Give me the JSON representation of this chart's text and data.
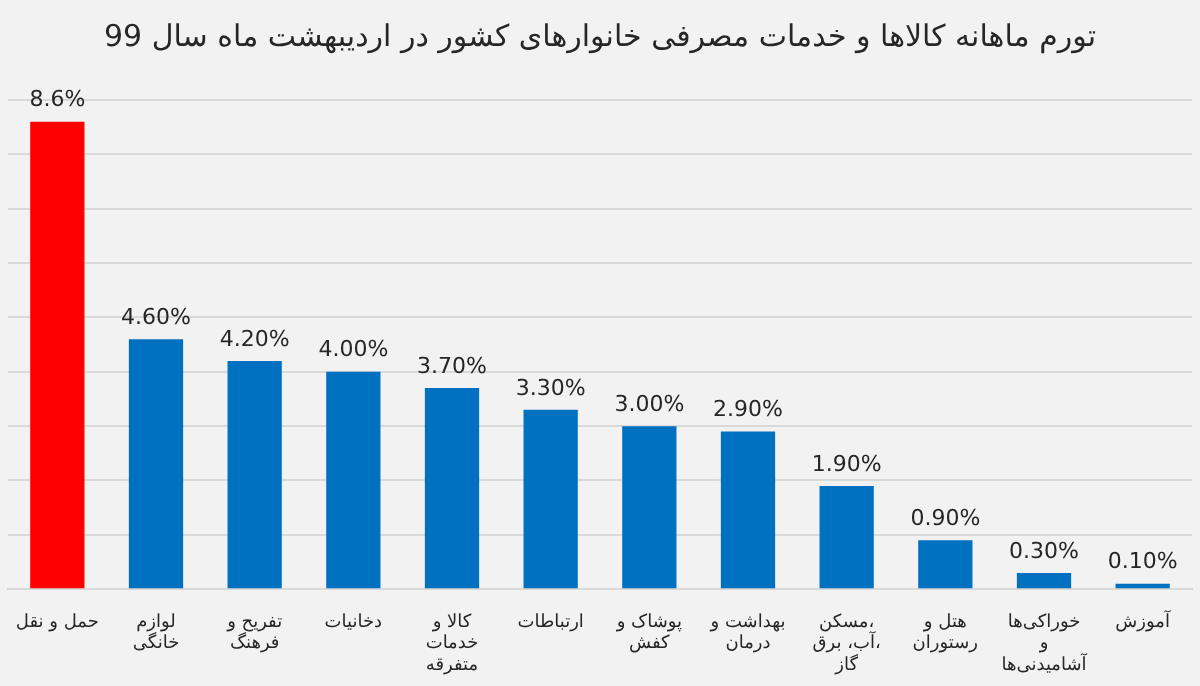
{
  "chart_data": {
    "type": "bar",
    "title": "تورم ماهانه کالاها و خدمات مصرفی خانوارهای کشور در اردیبهشت ماه سال 99",
    "categories": [
      "حمل و نقل",
      "لوازم خانگی",
      "تفریح و فرهنگ",
      "دخانیات",
      "کالا و خدمات متفرقه",
      "ارتباطات",
      "پوشاک و کفش",
      "بهداشت و درمان",
      "مسکن، آب، برق، گاز",
      "هتل و رستوران",
      "خوراکی‌ها و آشامیدنی‌ها",
      "آموزش"
    ],
    "values": [
      8.6,
      4.6,
      4.2,
      4.0,
      3.7,
      3.3,
      3.0,
      2.9,
      1.9,
      0.9,
      0.3,
      0.1
    ],
    "value_labels": [
      "8.6%",
      "4.60%",
      "4.20%",
      "4.00%",
      "3.70%",
      "3.30%",
      "3.00%",
      "2.90%",
      "1.90%",
      "0.90%",
      "0.30%",
      "0.10%"
    ],
    "colors": [
      "#ff0000",
      "#0070c0",
      "#0070c0",
      "#0070c0",
      "#0070c0",
      "#0070c0",
      "#0070c0",
      "#0070c0",
      "#0070c0",
      "#0070c0",
      "#0070c0",
      "#0070c0"
    ],
    "ylim": [
      0,
      9
    ],
    "yticks": [
      {
        "value": 0,
        "label": null
      },
      {
        "value": 1,
        "label": null
      },
      {
        "value": 2,
        "label": null
      },
      {
        "value": 3,
        "label": null
      },
      {
        "value": 4,
        "label": null
      },
      {
        "value": 5,
        "label": null
      },
      {
        "value": 6,
        "label": null
      },
      {
        "value": 7,
        "label": null
      },
      {
        "value": 8,
        "label": null
      },
      {
        "value": 9,
        "label": null
      }
    ],
    "tick_labels": "x",
    "grid": "y",
    "legend": false
  }
}
